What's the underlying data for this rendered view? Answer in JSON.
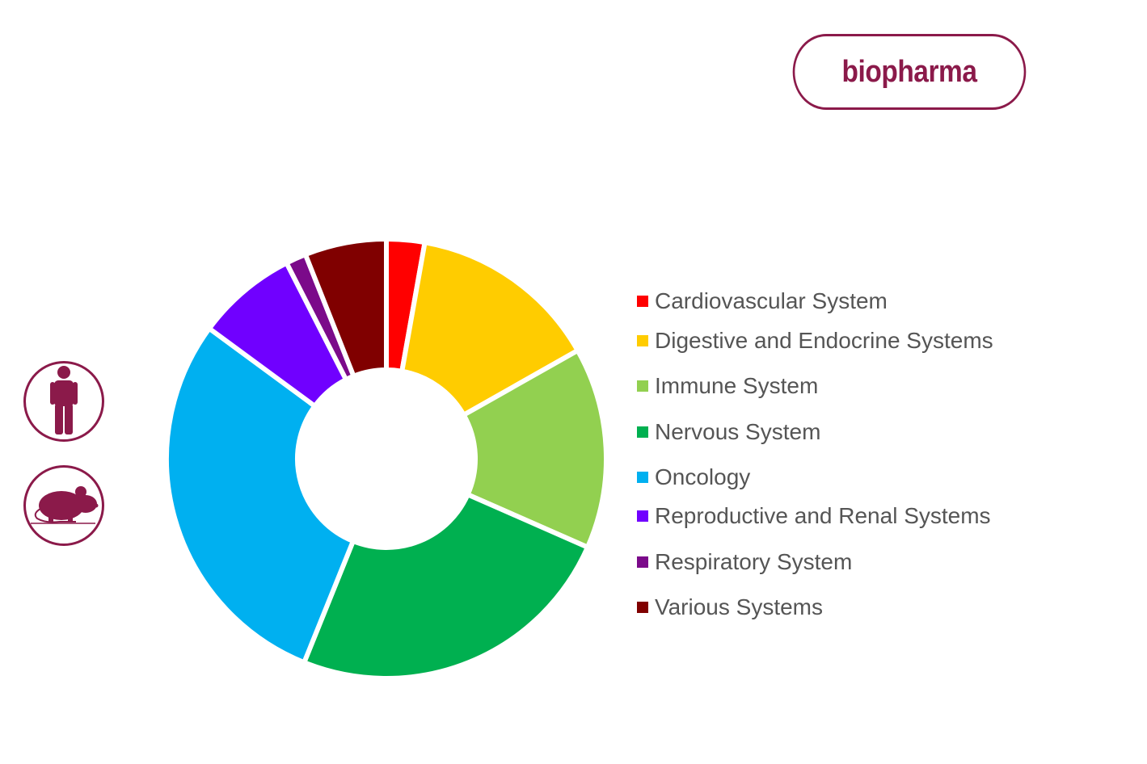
{
  "brand": {
    "label": "biopharma",
    "color": "#8b1a4a"
  },
  "species_filters": [
    {
      "icon": "human-icon"
    },
    {
      "icon": "mouse-icon"
    }
  ],
  "chart_data": {
    "type": "pie",
    "donut": true,
    "legend_position": "right",
    "categories": [
      "Cardiovascular System",
      "Digestive and Endocrine Systems",
      "Immune System",
      "Nervous System",
      "Oncology",
      "Reproductive and Renal Systems",
      "Respiratory System",
      "Various Systems"
    ],
    "values": [
      2.8,
      14.0,
      14.8,
      24.5,
      29.0,
      7.4,
      1.5,
      6.0
    ],
    "colors": [
      "#ff0000",
      "#ffcc00",
      "#92d050",
      "#00b050",
      "#00b0f0",
      "#7000ff",
      "#7b0a8a",
      "#800000"
    ]
  }
}
